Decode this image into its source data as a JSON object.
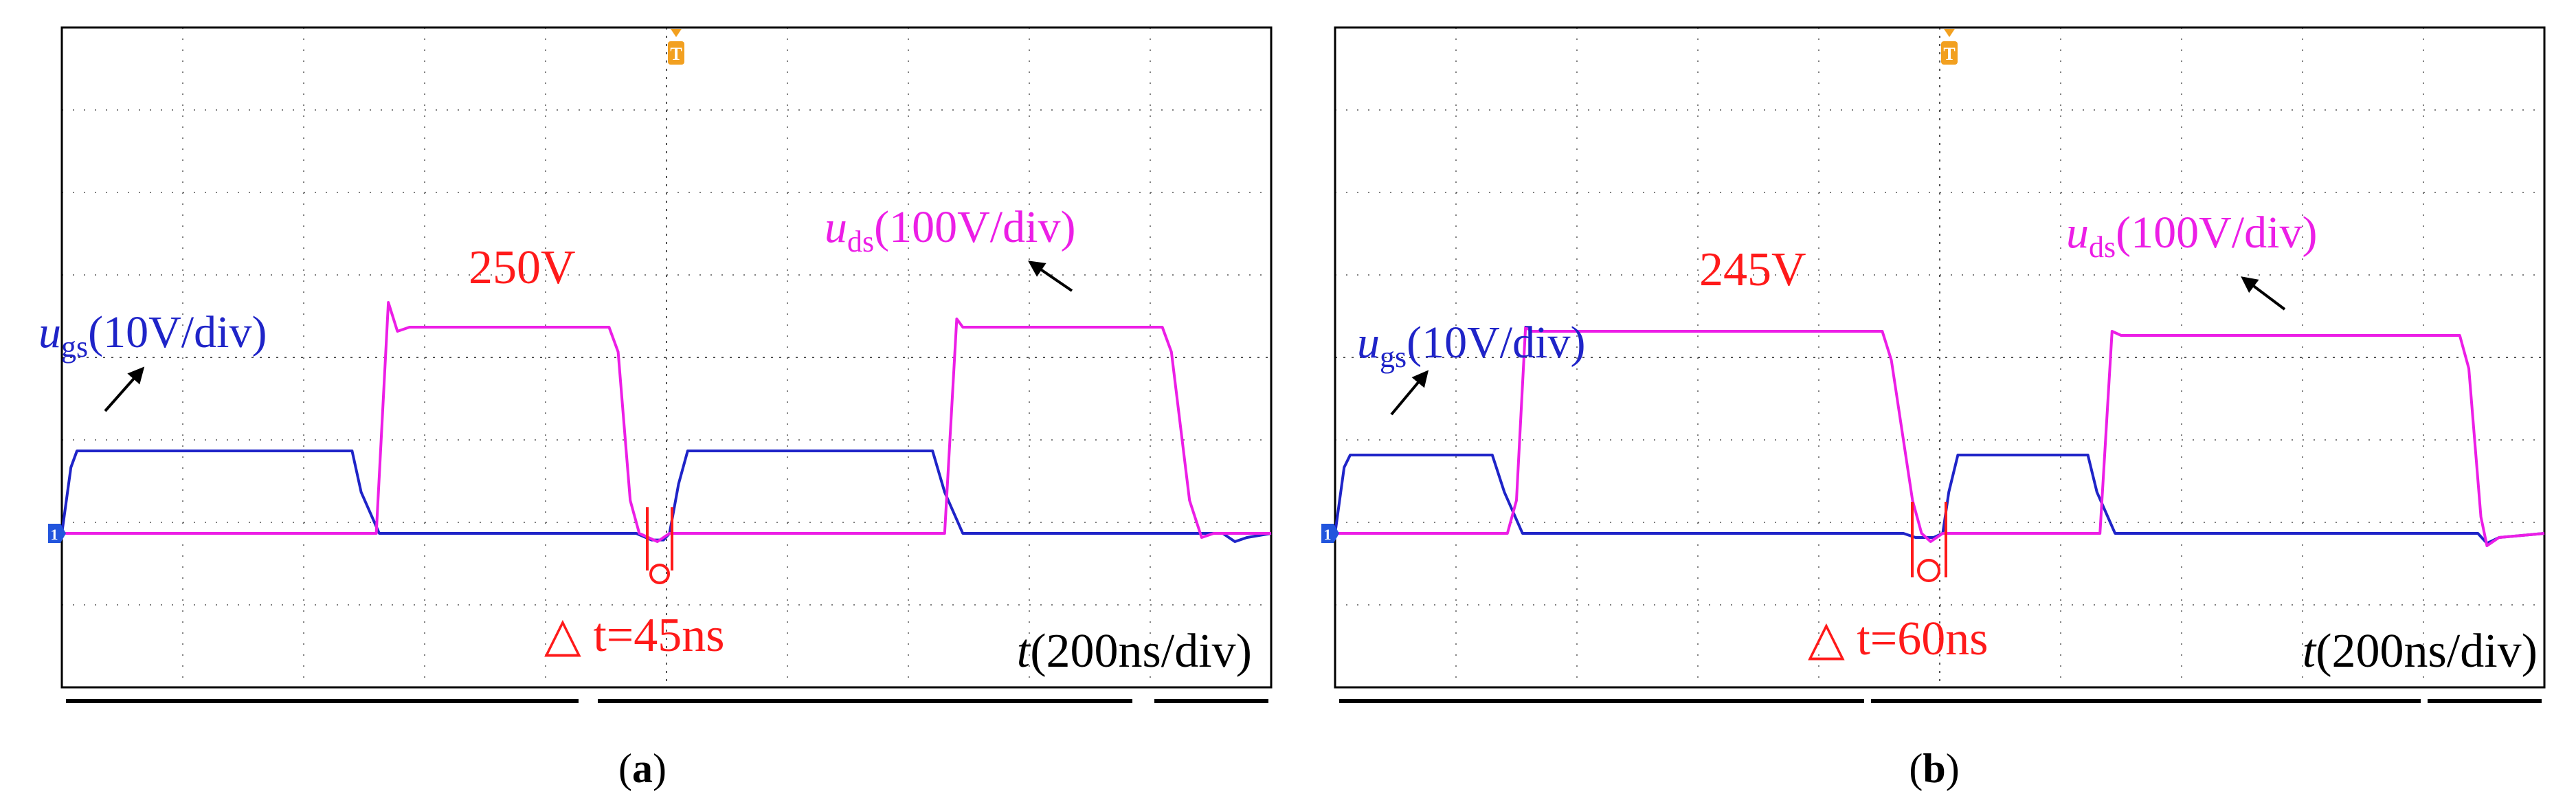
{
  "figure": {
    "panels": [
      {
        "label": "a",
        "spike_label": "250V",
        "delta_label": "△ t=45ns"
      },
      {
        "label": "b",
        "spike_label": "245V",
        "delta_label": "△ t=60ns"
      }
    ],
    "trace_labels": {
      "ugs_symbol": "u",
      "ugs_sub": "gs",
      "ugs_scale": "(10V/div)",
      "uds_symbol": "u",
      "uds_sub": "ds",
      "uds_scale": "(100V/div)",
      "time_symbol": "t",
      "time_scale": "(200ns/div)"
    },
    "markers": {
      "trigger": "T",
      "channel": "1"
    },
    "colors": {
      "ugs": "#1f24c8",
      "uds": "#ec1ee6",
      "annotation": "#ff1a1a",
      "trigger": "#f2a020",
      "channel": "#2255dd",
      "grid": "#555555"
    }
  },
  "chart_data": [
    {
      "type": "line",
      "panel": "a",
      "grid": true,
      "x_unit": "ns",
      "x_scale": "200ns/div",
      "xlim": [
        -1000,
        1000
      ],
      "series": [
        {
          "name": "ugs",
          "unit": "V",
          "scale": "10V/div",
          "points": [
            [
              -1000,
              0
            ],
            [
              -985,
              8
            ],
            [
              -975,
              10
            ],
            [
              -520,
              10
            ],
            [
              -505,
              5
            ],
            [
              -475,
              0
            ],
            [
              -50,
              0
            ],
            [
              -25,
              -0.8
            ],
            [
              -5,
              -0.8
            ],
            [
              5,
              0
            ],
            [
              20,
              6
            ],
            [
              35,
              10
            ],
            [
              440,
              10
            ],
            [
              460,
              5
            ],
            [
              490,
              0
            ],
            [
              920,
              0
            ],
            [
              940,
              -1
            ],
            [
              960,
              -0.5
            ],
            [
              1000,
              0
            ]
          ]
        },
        {
          "name": "uds",
          "unit": "V",
          "scale": "100V/div",
          "points": [
            [
              -1000,
              0
            ],
            [
              -480,
              0
            ],
            [
              -460,
              280
            ],
            [
              -445,
              245
            ],
            [
              -425,
              250
            ],
            [
              -95,
              250
            ],
            [
              -80,
              220
            ],
            [
              -60,
              40
            ],
            [
              -45,
              0
            ],
            [
              -15,
              -10
            ],
            [
              5,
              0
            ],
            [
              460,
              0
            ],
            [
              480,
              260
            ],
            [
              490,
              250
            ],
            [
              820,
              250
            ],
            [
              835,
              220
            ],
            [
              865,
              40
            ],
            [
              885,
              -5
            ],
            [
              905,
              0
            ],
            [
              1000,
              0
            ]
          ]
        }
      ]
    },
    {
      "type": "line",
      "panel": "b",
      "grid": true,
      "x_unit": "ns",
      "x_scale": "200ns/div",
      "xlim": [
        -1000,
        1000
      ],
      "series": [
        {
          "name": "ugs",
          "unit": "V",
          "scale": "10V/div",
          "points": [
            [
              -1000,
              0
            ],
            [
              -985,
              8
            ],
            [
              -975,
              9.5
            ],
            [
              -740,
              9.5
            ],
            [
              -720,
              5
            ],
            [
              -690,
              0
            ],
            [
              -60,
              0
            ],
            [
              -40,
              -0.5
            ],
            [
              -10,
              -0.5
            ],
            [
              5,
              0
            ],
            [
              15,
              5
            ],
            [
              30,
              9.5
            ],
            [
              245,
              9.5
            ],
            [
              260,
              5
            ],
            [
              290,
              0
            ],
            [
              890,
              0
            ],
            [
              905,
              -1.2
            ],
            [
              925,
              -0.5
            ],
            [
              1000,
              0
            ]
          ]
        },
        {
          "name": "uds",
          "unit": "V",
          "scale": "100V/div",
          "points": [
            [
              -1000,
              0
            ],
            [
              -715,
              0
            ],
            [
              -700,
              40
            ],
            [
              -685,
              250
            ],
            [
              -675,
              245
            ],
            [
              -95,
              245
            ],
            [
              -80,
              210
            ],
            [
              -45,
              40
            ],
            [
              -30,
              0
            ],
            [
              -15,
              -10
            ],
            [
              5,
              0
            ],
            [
              265,
              0
            ],
            [
              285,
              245
            ],
            [
              300,
              240
            ],
            [
              860,
              240
            ],
            [
              875,
              200
            ],
            [
              895,
              20
            ],
            [
              905,
              -15
            ],
            [
              925,
              -5
            ],
            [
              1000,
              0
            ]
          ]
        }
      ]
    }
  ]
}
